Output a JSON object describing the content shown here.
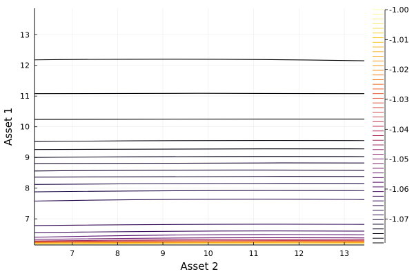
{
  "chart_data": {
    "type": "contour",
    "title": "",
    "xlabel": "Asset 2",
    "ylabel": "Asset 1",
    "xlim": [
      6.17,
      13.44
    ],
    "ylim": [
      6.15,
      13.86
    ],
    "xticks": [
      7,
      8,
      9,
      10,
      11,
      12,
      13
    ],
    "xtick_labels": [
      "7",
      "8",
      "9",
      "10",
      "11",
      "12",
      "13"
    ],
    "yticks": [
      7,
      8,
      9,
      10,
      11,
      12,
      13
    ],
    "ytick_labels": [
      "7",
      "8",
      "9",
      "10",
      "11",
      "12",
      "13"
    ],
    "grid": true,
    "colormap": "inferno",
    "colorbar": {
      "range": [
        -1.078,
        -1.0
      ],
      "ticks": [
        -1.07,
        -1.06,
        -1.05,
        -1.04,
        -1.03,
        -1.02,
        -1.01,
        -1.0
      ],
      "tick_labels": [
        "-1.07",
        "-1.06",
        "-1.05",
        "-1.04",
        "-1.03",
        "-1.02",
        "-1.01",
        "-1.00"
      ],
      "levels": 50
    },
    "contours": [
      {
        "y_left": 12.18,
        "y_mid": 12.2,
        "y_right": 12.15,
        "level_frac": 0.0
      },
      {
        "y_left": 11.08,
        "y_mid": 11.09,
        "y_right": 11.08,
        "level_frac": 0.0
      },
      {
        "y_left": 10.24,
        "y_mid": 10.25,
        "y_right": 10.25,
        "level_frac": 0.0
      },
      {
        "y_left": 9.52,
        "y_mid": 9.55,
        "y_right": 9.55,
        "level_frac": 0.02
      },
      {
        "y_left": 9.26,
        "y_mid": 9.28,
        "y_right": 9.28,
        "level_frac": 0.02
      },
      {
        "y_left": 9.0,
        "y_mid": 9.03,
        "y_right": 9.03,
        "level_frac": 0.05
      },
      {
        "y_left": 8.8,
        "y_mid": 8.82,
        "y_right": 8.82,
        "level_frac": 0.07
      },
      {
        "y_left": 8.56,
        "y_mid": 8.59,
        "y_right": 8.58,
        "level_frac": 0.09
      },
      {
        "y_left": 8.36,
        "y_mid": 8.38,
        "y_right": 8.38,
        "level_frac": 0.1
      },
      {
        "y_left": 8.12,
        "y_mid": 8.15,
        "y_right": 8.15,
        "level_frac": 0.12
      },
      {
        "y_left": 7.88,
        "y_mid": 7.92,
        "y_right": 7.92,
        "level_frac": 0.13
      },
      {
        "y_left": 7.58,
        "y_mid": 7.64,
        "y_right": 7.63,
        "level_frac": 0.15
      },
      {
        "y_left": 6.78,
        "y_mid": 6.82,
        "y_right": 6.82,
        "level_frac": 0.18
      },
      {
        "y_left": 6.55,
        "y_mid": 6.6,
        "y_right": 6.6,
        "level_frac": 0.2
      },
      {
        "y_left": 6.4,
        "y_mid": 6.48,
        "y_right": 6.48,
        "level_frac": 0.25
      },
      {
        "y_left": 6.33,
        "y_mid": 6.38,
        "y_right": 6.38,
        "level_frac": 0.3
      },
      {
        "y_left": 6.28,
        "y_mid": 6.32,
        "y_right": 6.32,
        "level_frac": 0.45
      },
      {
        "y_left": 6.26,
        "y_mid": 6.29,
        "y_right": 6.29,
        "level_frac": 0.55
      },
      {
        "y_left": 6.24,
        "y_mid": 6.27,
        "y_right": 6.27,
        "level_frac": 0.65
      },
      {
        "y_left": 6.22,
        "y_mid": 6.24,
        "y_right": 6.24,
        "level_frac": 0.75
      },
      {
        "y_left": 6.2,
        "y_mid": 6.22,
        "y_right": 6.22,
        "level_frac": 0.85
      },
      {
        "y_left": 6.18,
        "y_mid": 6.19,
        "y_right": 6.19,
        "level_frac": 0.95
      }
    ]
  }
}
